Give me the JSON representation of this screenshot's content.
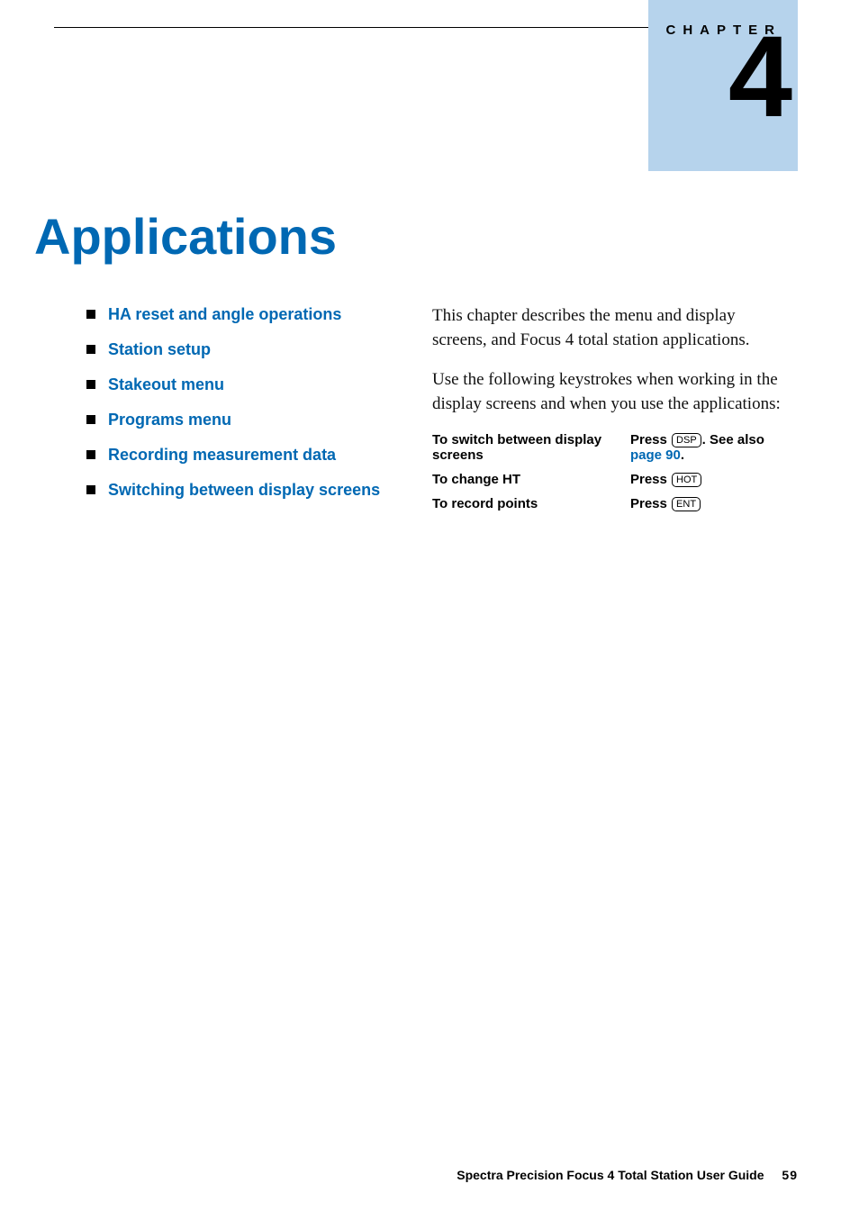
{
  "colors": {
    "accent": "#0068b3",
    "chapter_tab_bg": "#b6d3ec",
    "text": "#000000",
    "body_text": "#111111",
    "background": "#ffffff"
  },
  "chapter": {
    "label": "CHAPTER",
    "number": "4"
  },
  "title": "Applications",
  "toc": [
    "HA reset and angle operations",
    "Station setup",
    "Stakeout menu",
    "Programs menu",
    "Recording measurement data",
    "Switching between display screens"
  ],
  "paragraphs": {
    "p1": "This chapter describes the menu and display screens, and Focus 4 total station applications.",
    "p2": "Use the following keystrokes when working in the display screens and when you use the applications:"
  },
  "keystrokes": [
    {
      "action": "To switch between display screens",
      "press_label": "Press",
      "key": "DSP",
      "after_key": ". See also ",
      "link": "page 90",
      "after_link": "."
    },
    {
      "action": "To change HT",
      "press_label": "Press",
      "key": "HOT",
      "after_key": "",
      "link": "",
      "after_link": ""
    },
    {
      "action": "To record points",
      "press_label": "Press",
      "key": "ENT",
      "after_key": "",
      "link": "",
      "after_link": ""
    }
  ],
  "footer": {
    "text": "Spectra Precision Focus 4 Total Station User Guide",
    "page": "59"
  }
}
